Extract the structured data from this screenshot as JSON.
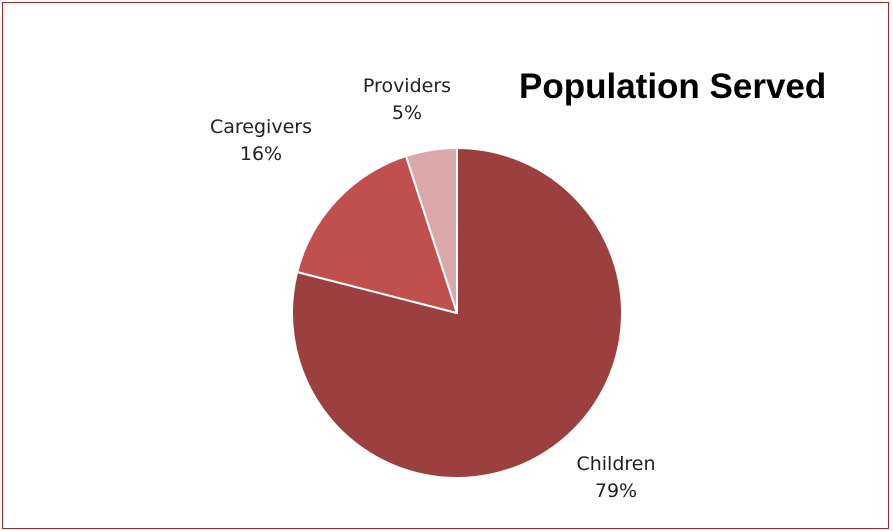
{
  "chart_data": {
    "type": "pie",
    "title": "Population Served",
    "slices": [
      {
        "label": "Children",
        "value": 79,
        "display": "79%",
        "color": "#9b403e"
      },
      {
        "label": "Caregivers",
        "value": 16,
        "display": "16%",
        "color": "#c0504d"
      },
      {
        "label": "Providers",
        "value": 5,
        "display": "5%",
        "color": "#d9a8a7"
      }
    ],
    "legend": "none",
    "labels": "outside"
  }
}
